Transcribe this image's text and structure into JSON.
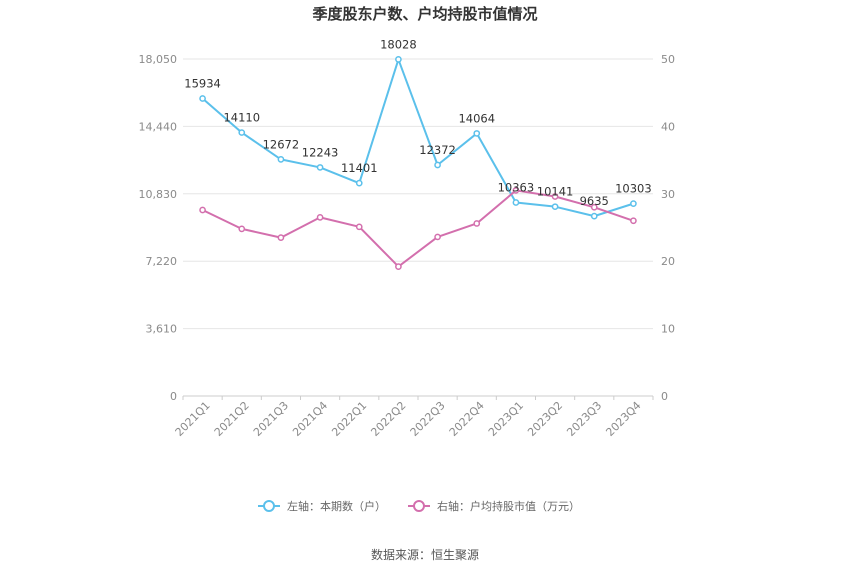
{
  "chart_data": {
    "type": "line",
    "title": "季度股东户数、户均持股市值情况",
    "categories": [
      "2021Q1",
      "2021Q2",
      "2021Q3",
      "2021Q4",
      "2022Q1",
      "2022Q2",
      "2022Q3",
      "2022Q4",
      "2023Q1",
      "2023Q2",
      "2023Q3",
      "2023Q4"
    ],
    "left_axis": {
      "ticks": [
        "0",
        "3,610",
        "7,220",
        "10,830",
        "14,440",
        "18,050"
      ],
      "min": 0,
      "max": 18050
    },
    "right_axis": {
      "ticks": [
        "0",
        "10",
        "20",
        "30",
        "40",
        "50"
      ],
      "min": 0,
      "max": 50
    },
    "series": [
      {
        "name": "左轴：本期数（户）",
        "axis": "left",
        "color": "#5bc0eb",
        "values": [
          15934,
          14110,
          12672,
          12243,
          11401,
          18028,
          12372,
          14064,
          10363,
          10141,
          9635,
          10303
        ],
        "labels": [
          "15934",
          "14110",
          "12672",
          "12243",
          "11401",
          "18028",
          "12372",
          "14064",
          "10363",
          "10141",
          "9635",
          "10303"
        ]
      },
      {
        "name": "右轴：户均持股市值（万元）",
        "axis": "right",
        "color": "#d36fad",
        "values": [
          27.6,
          24.8,
          23.5,
          26.5,
          25.1,
          19.2,
          23.6,
          25.6,
          30.5,
          29.6,
          28.0,
          26.0
        ]
      }
    ],
    "grid": true,
    "legend_position": "bottom",
    "source": "数据来源：恒生聚源"
  }
}
